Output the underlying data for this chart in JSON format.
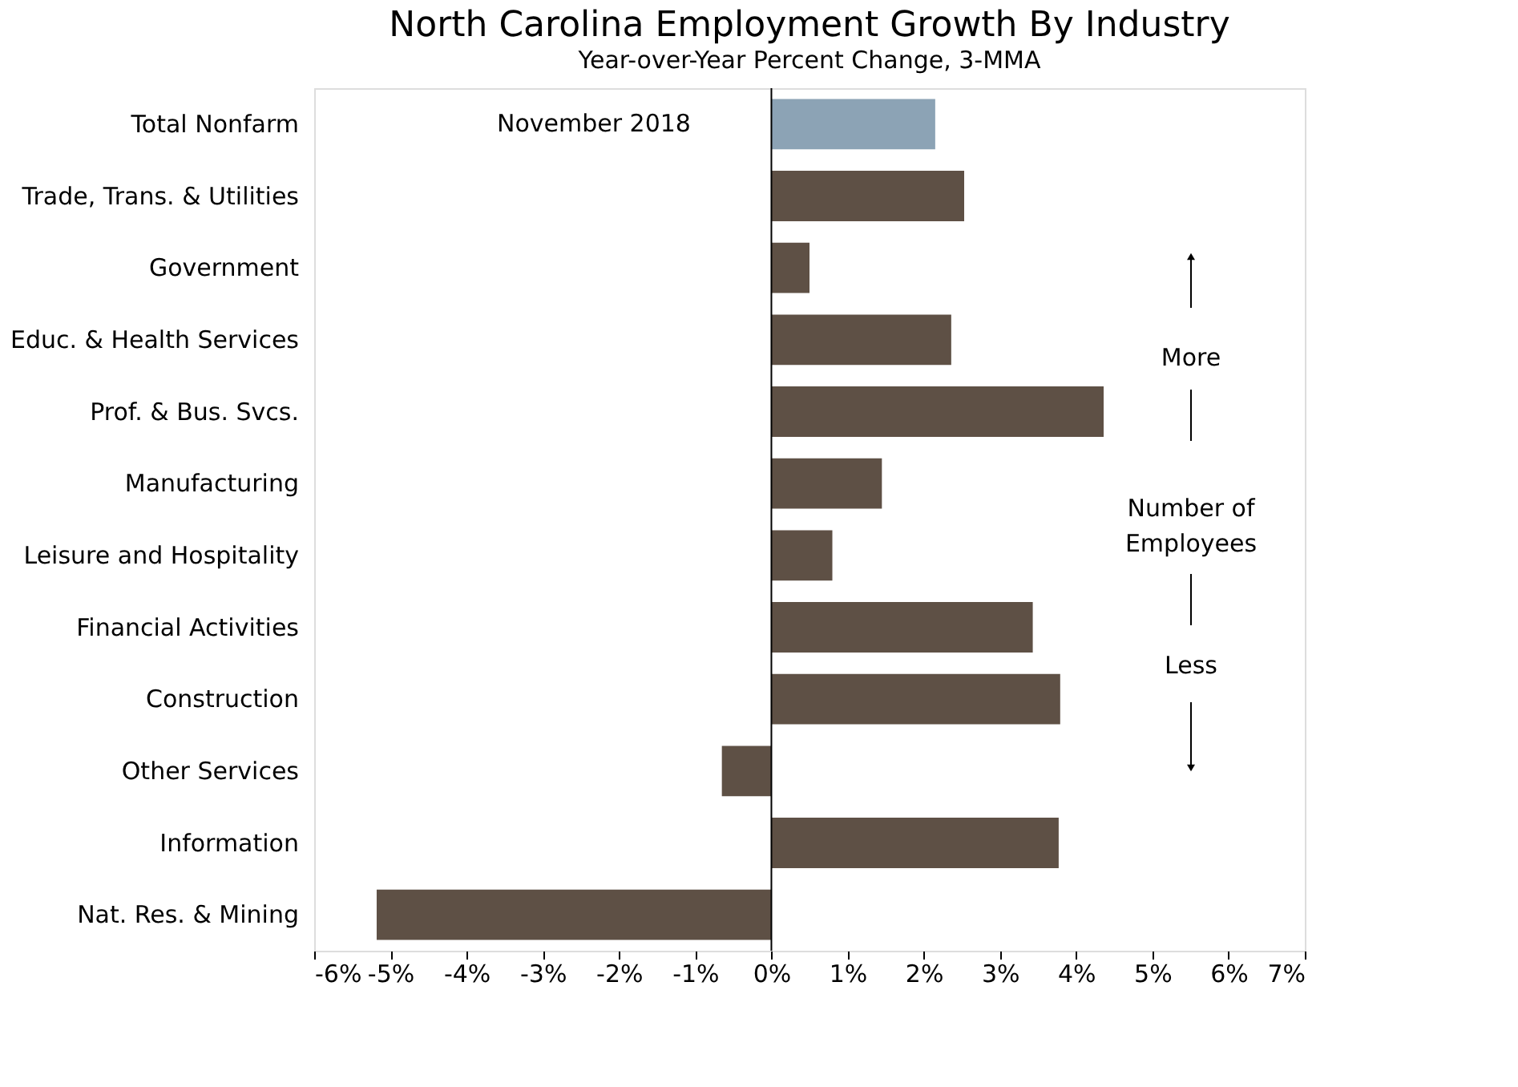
{
  "chart_data": {
    "type": "bar",
    "orientation": "horizontal",
    "title": "North Carolina Employment Growth By Industry",
    "subtitle": "Year-over-Year Percent Change, 3-MMA",
    "categories": [
      "Total Nonfarm",
      "Trade, Trans. & Utilities",
      "Government",
      "Educ. & Health Services",
      "Prof. & Bus. Svcs.",
      "Manufacturing",
      "Leisure and Hospitality",
      "Financial Activities",
      "Construction",
      "Other Services",
      "Information",
      "Nat. Res. & Mining"
    ],
    "values": [
      2.15,
      2.53,
      0.5,
      2.36,
      4.36,
      1.45,
      0.8,
      3.43,
      3.79,
      -0.65,
      3.77,
      -5.18
    ],
    "colors": [
      "#8ca3b5",
      "#5e5045",
      "#5e5045",
      "#5e5045",
      "#5e5045",
      "#5e5045",
      "#5e5045",
      "#5e5045",
      "#5e5045",
      "#5e5045",
      "#5e5045",
      "#5e5045"
    ],
    "xlim": [
      -6,
      7
    ],
    "xticks": [
      {
        "value": -6,
        "label": "-6%"
      },
      {
        "value": -5,
        "label": "-5%"
      },
      {
        "value": -4,
        "label": "-4%"
      },
      {
        "value": -3,
        "label": "-3%"
      },
      {
        "value": -2,
        "label": "-2%"
      },
      {
        "value": -1,
        "label": "-1%"
      },
      {
        "value": 0,
        "label": "0%"
      },
      {
        "value": 1,
        "label": "1%"
      },
      {
        "value": 2,
        "label": "2%"
      },
      {
        "value": 3,
        "label": "3%"
      },
      {
        "value": 4,
        "label": "4%"
      },
      {
        "value": 5,
        "label": "5%"
      },
      {
        "value": 6,
        "label": "6%"
      },
      {
        "value": 7,
        "label": "7%"
      }
    ],
    "ref_lines": [
      {
        "axis": "x",
        "value": 0,
        "color": "#000000"
      }
    ],
    "annotations": [
      "November 2018",
      "More",
      "Number of Employees",
      "Less"
    ],
    "grid": false
  }
}
